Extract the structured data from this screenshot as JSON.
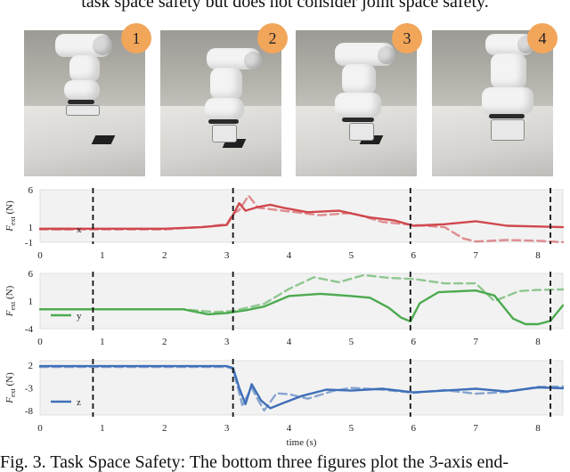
{
  "header_text": "task space safety but does not consider joint space safety.",
  "photos": [
    {
      "badge": "1"
    },
    {
      "badge": "2"
    },
    {
      "badge": "3"
    },
    {
      "badge": "4"
    }
  ],
  "caption": "Fig. 3.    Task Space Safety: The bottom three figures plot the 3-axis end-",
  "colors": {
    "x": "#d0484e",
    "y": "#4caa4f",
    "z": "#3f6fb8",
    "badge": "#f2a65a"
  },
  "chart_data": [
    {
      "type": "line",
      "ylabel": "F_ext (N)",
      "ylabel_main": "F",
      "ylabel_sub": "ext",
      "ylabel_unit": "(N)",
      "xlim": [
        0,
        8.4
      ],
      "ylim": [
        -1,
        6
      ],
      "yticks": [
        6,
        1,
        -1
      ],
      "xticks": [
        0,
        1,
        2,
        3,
        4,
        5,
        6,
        7,
        8
      ],
      "legend": "x",
      "legend_placement": "lower-left",
      "event_lines": [
        0.85,
        3.1,
        5.95,
        8.2
      ],
      "series": [
        {
          "style": "solid",
          "x": [
            0,
            2.0,
            2.6,
            3.0,
            3.1,
            3.2,
            3.3,
            3.5,
            3.7,
            3.9,
            4.3,
            4.8,
            5.3,
            5.7,
            6.0,
            6.5,
            7.0,
            7.5,
            8.0,
            8.4
          ],
          "y": [
            0.8,
            0.8,
            1.0,
            1.3,
            2.6,
            4.2,
            3.2,
            3.7,
            4.0,
            3.6,
            3.0,
            3.2,
            2.3,
            1.9,
            1.2,
            1.4,
            1.8,
            1.2,
            1.1,
            1.0
          ]
        },
        {
          "style": "dashed",
          "x": [
            0,
            2.0,
            2.7,
            3.0,
            3.1,
            3.2,
            3.35,
            3.5,
            3.7,
            4.0,
            4.5,
            5.0,
            5.5,
            6.0,
            6.5,
            6.8,
            7.0,
            7.5,
            8.0,
            8.4
          ],
          "y": [
            0.7,
            0.7,
            1.1,
            1.4,
            2.8,
            3.3,
            5.2,
            3.6,
            3.4,
            3.1,
            2.6,
            2.9,
            1.7,
            1.3,
            1.0,
            -0.5,
            -0.9,
            -0.7,
            -0.8,
            -1.0
          ]
        }
      ]
    },
    {
      "type": "line",
      "ylabel": "F_ext (N)",
      "ylabel_main": "F",
      "ylabel_sub": "ext",
      "ylabel_unit": "(N)",
      "xlim": [
        0,
        8.4
      ],
      "ylim": [
        -4,
        6
      ],
      "yticks": [
        6,
        1,
        -4
      ],
      "xticks": [
        0,
        1,
        2,
        3,
        4,
        5,
        6,
        7,
        8
      ],
      "legend": "y",
      "legend_placement": "lower-left",
      "event_lines": [
        0.85,
        3.1,
        5.95,
        8.2
      ],
      "series": [
        {
          "style": "solid",
          "x": [
            0,
            2.3,
            2.7,
            3.0,
            3.3,
            3.6,
            4.0,
            4.5,
            5.0,
            5.3,
            5.6,
            5.8,
            5.95,
            6.1,
            6.4,
            7.0,
            7.3,
            7.6,
            7.8,
            8.0,
            8.2,
            8.4
          ],
          "y": [
            -0.5,
            -0.5,
            -1.4,
            -1.2,
            -0.7,
            0.0,
            1.9,
            2.3,
            1.9,
            1.6,
            -0.2,
            -2.0,
            -2.7,
            0.6,
            2.6,
            2.9,
            2.0,
            -2.2,
            -3.2,
            -3.2,
            -2.6,
            0.2
          ]
        },
        {
          "style": "dashed",
          "x": [
            0,
            2.3,
            2.8,
            3.1,
            3.6,
            4.0,
            4.4,
            4.8,
            5.2,
            5.6,
            6.0,
            6.5,
            7.0,
            7.3,
            7.7,
            8.0,
            8.4
          ],
          "y": [
            -0.5,
            -0.5,
            -1.0,
            -0.8,
            0.5,
            3.2,
            5.3,
            4.4,
            5.7,
            5.2,
            5.0,
            4.2,
            4.2,
            1.0,
            2.8,
            3.0,
            3.1
          ]
        }
      ]
    },
    {
      "type": "line",
      "ylabel": "F_ext (N)",
      "ylabel_main": "F",
      "ylabel_sub": "ext",
      "ylabel_unit": "(N)",
      "xlabel": "time (s)",
      "xlim": [
        0,
        8.4
      ],
      "ylim": [
        -9,
        3
      ],
      "yticks": [
        2,
        -3,
        -8
      ],
      "xticks": [
        0,
        1,
        2,
        3,
        4,
        5,
        6,
        7,
        8
      ],
      "legend": "z",
      "legend_placement": "lower-left",
      "event_lines": [
        0.85,
        3.1,
        5.95,
        8.2
      ],
      "series": [
        {
          "style": "solid",
          "x": [
            0,
            2.5,
            3.0,
            3.1,
            3.2,
            3.3,
            3.4,
            3.55,
            3.7,
            3.9,
            4.2,
            4.6,
            5.0,
            5.5,
            6.0,
            6.5,
            7.0,
            7.5,
            8.0,
            8.4
          ],
          "y": [
            1.8,
            1.8,
            1.8,
            1.4,
            -3.0,
            -6.6,
            -2.2,
            -5.8,
            -7.5,
            -6.4,
            -4.8,
            -3.4,
            -3.6,
            -3.2,
            -4.0,
            -3.6,
            -3.2,
            -3.8,
            -2.9,
            -3.1
          ]
        },
        {
          "style": "dashed",
          "x": [
            0,
            2.5,
            3.0,
            3.1,
            3.25,
            3.4,
            3.5,
            3.6,
            3.8,
            4.0,
            4.3,
            4.7,
            5.0,
            5.5,
            6.0,
            6.5,
            7.0,
            7.5,
            8.0,
            8.4
          ],
          "y": [
            1.6,
            1.6,
            1.6,
            1.2,
            -6.8,
            -3.0,
            -5.6,
            -8.0,
            -4.2,
            -4.4,
            -5.4,
            -3.7,
            -3.0,
            -3.4,
            -4.1,
            -3.5,
            -4.3,
            -3.9,
            -2.8,
            -2.7
          ]
        }
      ]
    }
  ]
}
